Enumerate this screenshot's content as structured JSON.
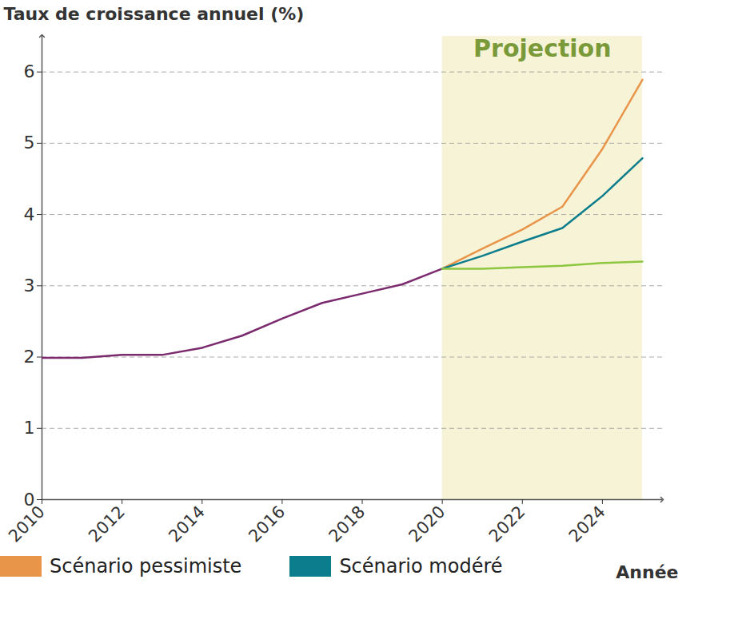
{
  "chart_data": {
    "type": "line",
    "y_label": "Taux de croissance annuel (%)",
    "x_label": "Année",
    "x": [
      2010,
      2011,
      2012,
      2013,
      2014,
      2015,
      2016,
      2017,
      2018,
      2019,
      2020,
      2021,
      2022,
      2023,
      2024,
      2025
    ],
    "series": [
      {
        "color": "#7b2a6e",
        "values": [
          1.99,
          1.99,
          2.03,
          2.03,
          2.13,
          2.3,
          2.54,
          2.76,
          2.89,
          3.02,
          3.24,
          null,
          null,
          null,
          null,
          null
        ]
      },
      {
        "name": "Scénario pessimiste",
        "color": "#e8954a",
        "values": [
          null,
          null,
          null,
          null,
          null,
          null,
          null,
          null,
          null,
          null,
          3.24,
          3.52,
          3.79,
          4.11,
          4.92,
          5.89
        ]
      },
      {
        "name": "Scénario modéré",
        "color": "#0b7d8c",
        "values": [
          null,
          null,
          null,
          null,
          null,
          null,
          null,
          null,
          null,
          null,
          3.24,
          3.42,
          3.62,
          3.81,
          4.26,
          4.79
        ]
      },
      {
        "color": "#8dc63f",
        "values": [
          null,
          null,
          null,
          null,
          null,
          null,
          null,
          null,
          null,
          null,
          3.24,
          3.24,
          3.26,
          3.28,
          3.32,
          3.34
        ]
      }
    ],
    "annotations": [
      {
        "text": "Projection",
        "x_start": 2020,
        "x_end": 2025,
        "color": "#7a9a3a"
      }
    ],
    "xlim": [
      2010,
      2025.5
    ],
    "xticks": [
      2010,
      2012,
      2014,
      2016,
      2018,
      2020,
      2022,
      2024
    ],
    "ylim": [
      0,
      6.5
    ],
    "yticks": [
      0,
      1,
      2,
      3,
      4,
      5,
      6
    ],
    "grid": true,
    "legend": "bottom-left"
  }
}
